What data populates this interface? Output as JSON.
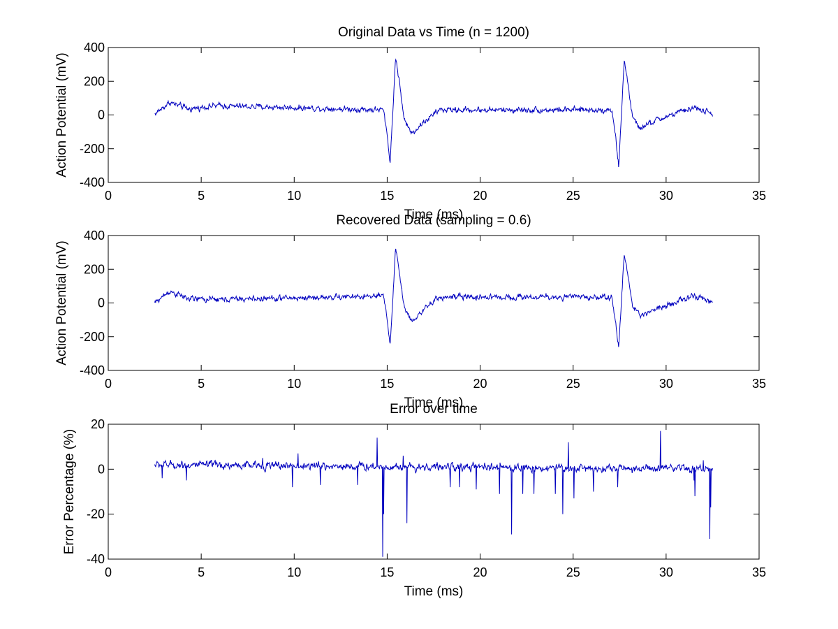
{
  "colors": {
    "series": "#0000bf",
    "axes": "#000000",
    "background": "#ffffff"
  },
  "chart_data": [
    {
      "type": "line",
      "title": "Original Data vs Time (n = 1200)",
      "xlabel": "Time (ms)",
      "ylabel": "Action Potential (mV)",
      "xlim": [
        0,
        35
      ],
      "ylim": [
        -400,
        400
      ],
      "xticks": [
        "0",
        "5",
        "10",
        "15",
        "20",
        "25",
        "30",
        "35"
      ],
      "yticks": [
        "-400",
        "-200",
        "0",
        "200",
        "400"
      ],
      "grid": false,
      "legend": "none",
      "x_range": [
        2.5,
        32.5
      ],
      "n_points": 1200,
      "noise_amplitude": 15,
      "key_points": [
        {
          "x": 2.5,
          "y": 5
        },
        {
          "x": 3.3,
          "y": 75
        },
        {
          "x": 4.3,
          "y": 35
        },
        {
          "x": 5.7,
          "y": 55
        },
        {
          "x": 14.8,
          "y": 30
        },
        {
          "x": 15.0,
          "y": -120
        },
        {
          "x": 15.15,
          "y": -280
        },
        {
          "x": 15.3,
          "y": 0
        },
        {
          "x": 15.45,
          "y": 350
        },
        {
          "x": 15.65,
          "y": 200
        },
        {
          "x": 15.9,
          "y": -20
        },
        {
          "x": 16.3,
          "y": -110
        },
        {
          "x": 17.0,
          "y": -40
        },
        {
          "x": 17.8,
          "y": 30
        },
        {
          "x": 27.1,
          "y": 30
        },
        {
          "x": 27.3,
          "y": -150
        },
        {
          "x": 27.45,
          "y": -310
        },
        {
          "x": 27.6,
          "y": 0
        },
        {
          "x": 27.75,
          "y": 340
        },
        {
          "x": 27.95,
          "y": 180
        },
        {
          "x": 28.2,
          "y": -20
        },
        {
          "x": 28.6,
          "y": -80
        },
        {
          "x": 29.5,
          "y": -30
        },
        {
          "x": 31.5,
          "y": 45
        },
        {
          "x": 32.5,
          "y": 5
        }
      ]
    },
    {
      "type": "line",
      "title": "Recovered Data (sampling = 0.6)",
      "xlabel": "Time (ms)",
      "ylabel": "Action Potential (mV)",
      "xlim": [
        0,
        35
      ],
      "ylim": [
        -400,
        400
      ],
      "xticks": [
        "0",
        "5",
        "10",
        "15",
        "20",
        "25",
        "30",
        "35"
      ],
      "yticks": [
        "-400",
        "-200",
        "0",
        "200",
        "400"
      ],
      "grid": false,
      "legend": "none",
      "x_range": [
        2.5,
        32.5
      ],
      "n_points": 1200,
      "noise_amplitude": 15,
      "key_points": [
        {
          "x": 2.5,
          "y": 0
        },
        {
          "x": 3.3,
          "y": 70
        },
        {
          "x": 4.3,
          "y": 25
        },
        {
          "x": 5.7,
          "y": 20
        },
        {
          "x": 14.8,
          "y": 40
        },
        {
          "x": 15.0,
          "y": -100
        },
        {
          "x": 15.15,
          "y": -240
        },
        {
          "x": 15.3,
          "y": 0
        },
        {
          "x": 15.45,
          "y": 335
        },
        {
          "x": 15.65,
          "y": 190
        },
        {
          "x": 15.9,
          "y": -20
        },
        {
          "x": 16.3,
          "y": -105
        },
        {
          "x": 17.0,
          "y": -40
        },
        {
          "x": 17.8,
          "y": 35
        },
        {
          "x": 27.1,
          "y": 35
        },
        {
          "x": 27.3,
          "y": -130
        },
        {
          "x": 27.45,
          "y": -265
        },
        {
          "x": 27.6,
          "y": 0
        },
        {
          "x": 27.75,
          "y": 300
        },
        {
          "x": 27.95,
          "y": 160
        },
        {
          "x": 28.2,
          "y": -20
        },
        {
          "x": 28.6,
          "y": -75
        },
        {
          "x": 29.5,
          "y": -30
        },
        {
          "x": 31.5,
          "y": 40
        },
        {
          "x": 32.5,
          "y": 5
        }
      ]
    },
    {
      "type": "line",
      "title": "Error over time",
      "xlabel": "Time (ms)",
      "ylabel": "Error Percentage (%)",
      "xlim": [
        0,
        35
      ],
      "ylim": [
        -40,
        20
      ],
      "xticks": [
        "0",
        "5",
        "10",
        "15",
        "20",
        "25",
        "30",
        "35"
      ],
      "yticks": [
        "-40",
        "-20",
        "0",
        "20"
      ],
      "grid": false,
      "legend": "none",
      "x_range": [
        2.5,
        32.5
      ],
      "n_points": 1200,
      "noise_amplitude": 1.5,
      "key_points": [
        {
          "x": 2.5,
          "y": 2
        },
        {
          "x": 32.5,
          "y": 0
        }
      ],
      "spikes": [
        {
          "x": 2.9,
          "y": -4
        },
        {
          "x": 4.2,
          "y": -5
        },
        {
          "x": 8.3,
          "y": 5
        },
        {
          "x": 9.9,
          "y": -8
        },
        {
          "x": 10.2,
          "y": 7
        },
        {
          "x": 11.4,
          "y": -7
        },
        {
          "x": 13.4,
          "y": -7
        },
        {
          "x": 14.45,
          "y": 14
        },
        {
          "x": 14.75,
          "y": -39
        },
        {
          "x": 14.8,
          "y": -20
        },
        {
          "x": 15.85,
          "y": 6
        },
        {
          "x": 16.05,
          "y": -24
        },
        {
          "x": 18.4,
          "y": -8
        },
        {
          "x": 18.9,
          "y": -8
        },
        {
          "x": 19.8,
          "y": -9
        },
        {
          "x": 21.05,
          "y": -11
        },
        {
          "x": 21.7,
          "y": -29
        },
        {
          "x": 22.3,
          "y": -11
        },
        {
          "x": 22.9,
          "y": -11
        },
        {
          "x": 24.05,
          "y": -11
        },
        {
          "x": 24.45,
          "y": -20
        },
        {
          "x": 24.75,
          "y": 12
        },
        {
          "x": 25.05,
          "y": -13
        },
        {
          "x": 26.1,
          "y": -10
        },
        {
          "x": 27.4,
          "y": -8
        },
        {
          "x": 29.7,
          "y": 17
        },
        {
          "x": 31.5,
          "y": -5
        },
        {
          "x": 31.55,
          "y": -12
        },
        {
          "x": 32.0,
          "y": 4
        },
        {
          "x": 32.35,
          "y": -31
        },
        {
          "x": 32.4,
          "y": -17
        }
      ]
    }
  ]
}
